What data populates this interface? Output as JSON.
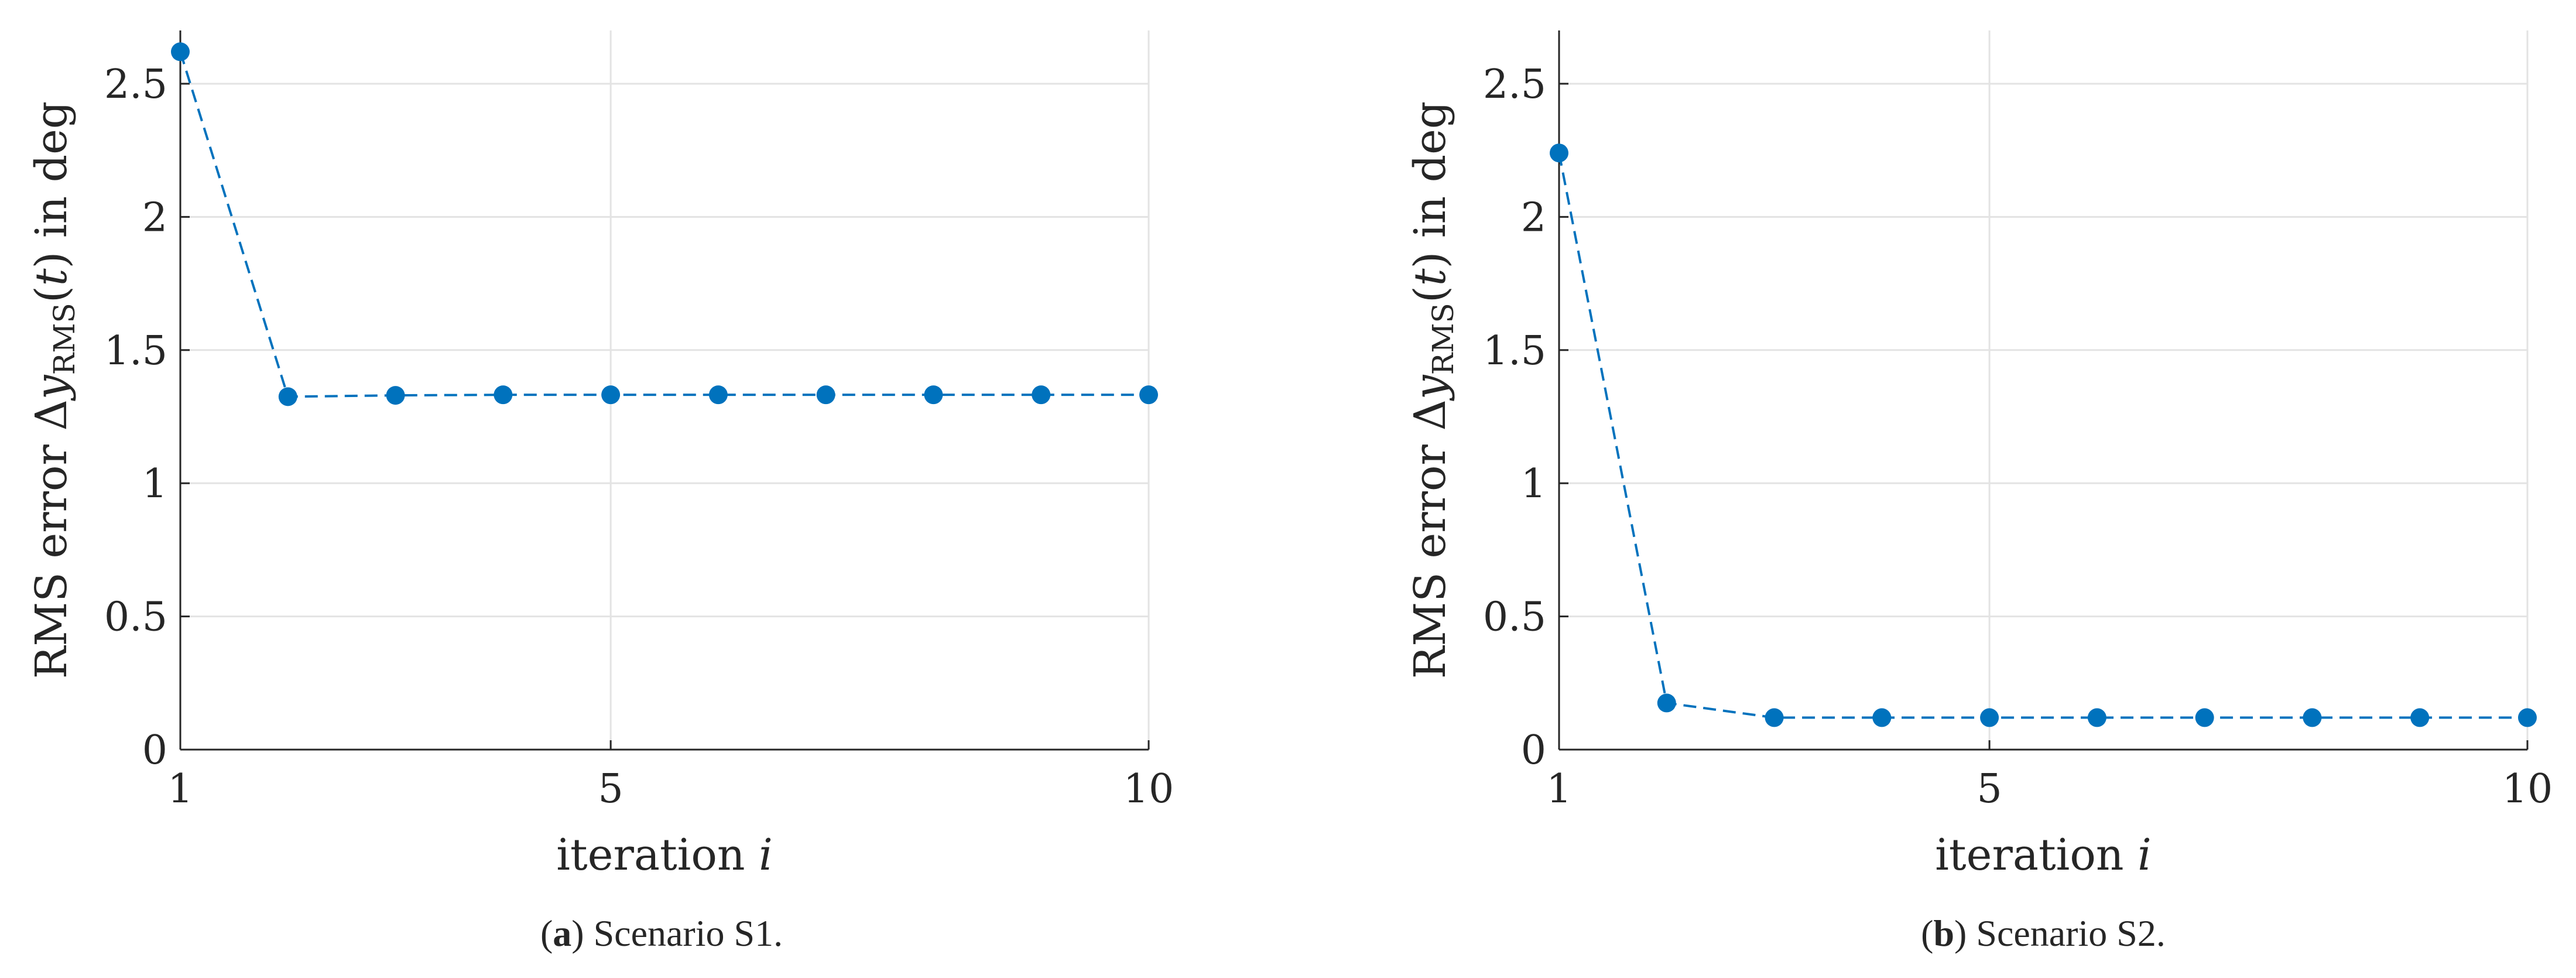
{
  "chart_data": [
    {
      "type": "line",
      "caption": {
        "letter": "a",
        "text": "Scenario S1."
      },
      "xlabel": "iteration i",
      "ylabel": "RMS error Δy_RMS(t) in deg",
      "xlim": [
        1,
        10
      ],
      "ylim": [
        0,
        2.7
      ],
      "xticks": [
        1,
        5,
        10
      ],
      "yticks": [
        0,
        0.5,
        1,
        1.5,
        2,
        2.5
      ],
      "grid": true,
      "series": [
        {
          "x": [
            1,
            2,
            3,
            4,
            5,
            6,
            7,
            8,
            9,
            10
          ],
          "y": [
            2.62,
            1.325,
            1.33,
            1.332,
            1.332,
            1.332,
            1.332,
            1.332,
            1.332,
            1.332
          ]
        }
      ]
    },
    {
      "type": "line",
      "caption": {
        "letter": "b",
        "text": "Scenario S2."
      },
      "xlabel": "iteration i",
      "ylabel": "RMS error Δy_RMS(t) in deg",
      "xlim": [
        1,
        10
      ],
      "ylim": [
        0,
        2.7
      ],
      "xticks": [
        1,
        5,
        10
      ],
      "yticks": [
        0,
        0.5,
        1,
        1.5,
        2,
        2.5
      ],
      "grid": true,
      "series": [
        {
          "x": [
            1,
            2,
            3,
            4,
            5,
            6,
            7,
            8,
            9,
            10
          ],
          "y": [
            2.24,
            0.175,
            0.12,
            0.12,
            0.12,
            0.12,
            0.12,
            0.12,
            0.12,
            0.12
          ]
        }
      ]
    }
  ],
  "style": {
    "series_color": "#0072BD",
    "grid_color": "#e3e3e3",
    "axis_color": "#262626"
  }
}
